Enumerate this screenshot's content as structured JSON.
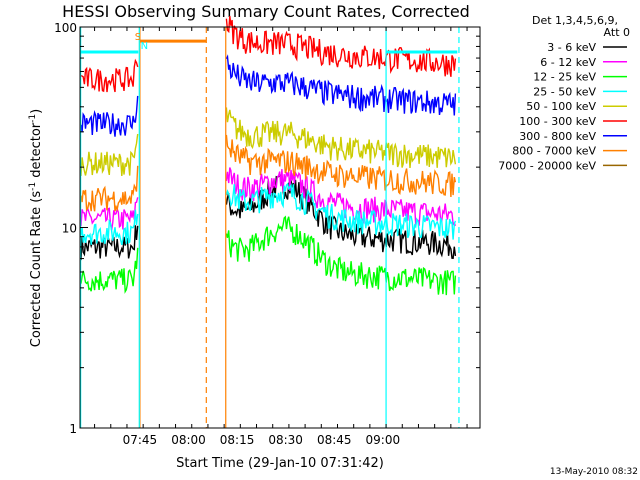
{
  "chart_data": {
    "type": "line",
    "title": "HESSI Observing Summary Count Rates, Corrected",
    "xlabel": "Start Time (29-Jan-10 07:31:42)",
    "ylabel": "Corrected Count Rate (s",
    "ylabel_sup1": "-1",
    "ylabel_mid": " detector",
    "ylabel_sup2": "-1",
    "ylabel_end": ")",
    "yscale": "log",
    "ylim": [
      1,
      100
    ],
    "xlim_minutes": [
      -4.5,
      119
    ],
    "x_ticks": [
      {
        "minute": 14,
        "label": "07:45"
      },
      {
        "minute": 29,
        "label": "08:00"
      },
      {
        "minute": 44,
        "label": "08:15"
      },
      {
        "minute": 59,
        "label": "08:30"
      },
      {
        "minute": 74,
        "label": "08:45"
      },
      {
        "minute": 89,
        "label": "09:00"
      }
    ],
    "y_ticks": [
      {
        "value": 1,
        "label": "1"
      },
      {
        "value": 10,
        "label": "10"
      },
      {
        "value": 100,
        "label": "100"
      }
    ],
    "legend_header": [
      "Det 1,3,4,5,6,9,",
      "Att 0"
    ],
    "series": [
      {
        "name": "3 - 6 keV",
        "color": "#000000",
        "pre": 8,
        "post": 10,
        "bump": 1.7
      },
      {
        "name": "6 - 12 keV",
        "color": "#ff00ff",
        "pre": 11,
        "post": 14,
        "bump": 1.3
      },
      {
        "name": "12 - 25 keV",
        "color": "#00ff00",
        "pre": 5.5,
        "post": 6.5,
        "bump": 1.6
      },
      {
        "name": "25 - 50 keV",
        "color": "#00ffff",
        "pre": 9.5,
        "post": 12,
        "bump": 1.3
      },
      {
        "name": "50 - 100 keV",
        "color": "#cccc00",
        "pre": 21,
        "post": 27,
        "bump": 1.15
      },
      {
        "name": "100 - 300 keV",
        "color": "#ff0000",
        "pre": 55,
        "post": 80,
        "bump": 1.08
      },
      {
        "name": "300 - 800 keV",
        "color": "#0000ff",
        "pre": 33,
        "post": 50,
        "bump": 1.1
      },
      {
        "name": "800 - 7000 keV",
        "color": "#ff8000",
        "pre": 14,
        "post": 20,
        "bump": 1.12
      },
      {
        "name": "7000 - 20000 keV",
        "color": "#996600"
      }
    ],
    "gap_minutes": [
      13.5,
      40.5
    ],
    "markers": [
      {
        "letter": "S",
        "color": "#ff8000",
        "minute": 14
      },
      {
        "letter": "N",
        "color": "#00ffff",
        "minute": 16
      }
    ],
    "saa_bar": {
      "color": "#ff8000",
      "start": 14,
      "end": 34.5,
      "value": 85
    },
    "night_bars": [
      {
        "color": "#00ffff",
        "start": -4.5,
        "end": 13.5,
        "value": 75
      },
      {
        "color": "#00ffff",
        "start": 90,
        "end": 112,
        "value": 75
      }
    ],
    "vlines": [
      {
        "color": "#00ffff",
        "minute": -4.3,
        "dashed": false
      },
      {
        "color": "#ff8000",
        "minute": 14,
        "dashed": false
      },
      {
        "color": "#00ffff",
        "minute": 13.8,
        "dashed": false
      },
      {
        "color": "#ff8000",
        "minute": 34.5,
        "dashed": true
      },
      {
        "color": "#ff8000",
        "minute": 40.5,
        "dashed": false
      },
      {
        "color": "#00ffff",
        "minute": 90,
        "dashed": false
      },
      {
        "color": "#00ffff",
        "minute": 112.5,
        "dashed": true
      }
    ],
    "footer": "13-May-2010 08:32"
  }
}
